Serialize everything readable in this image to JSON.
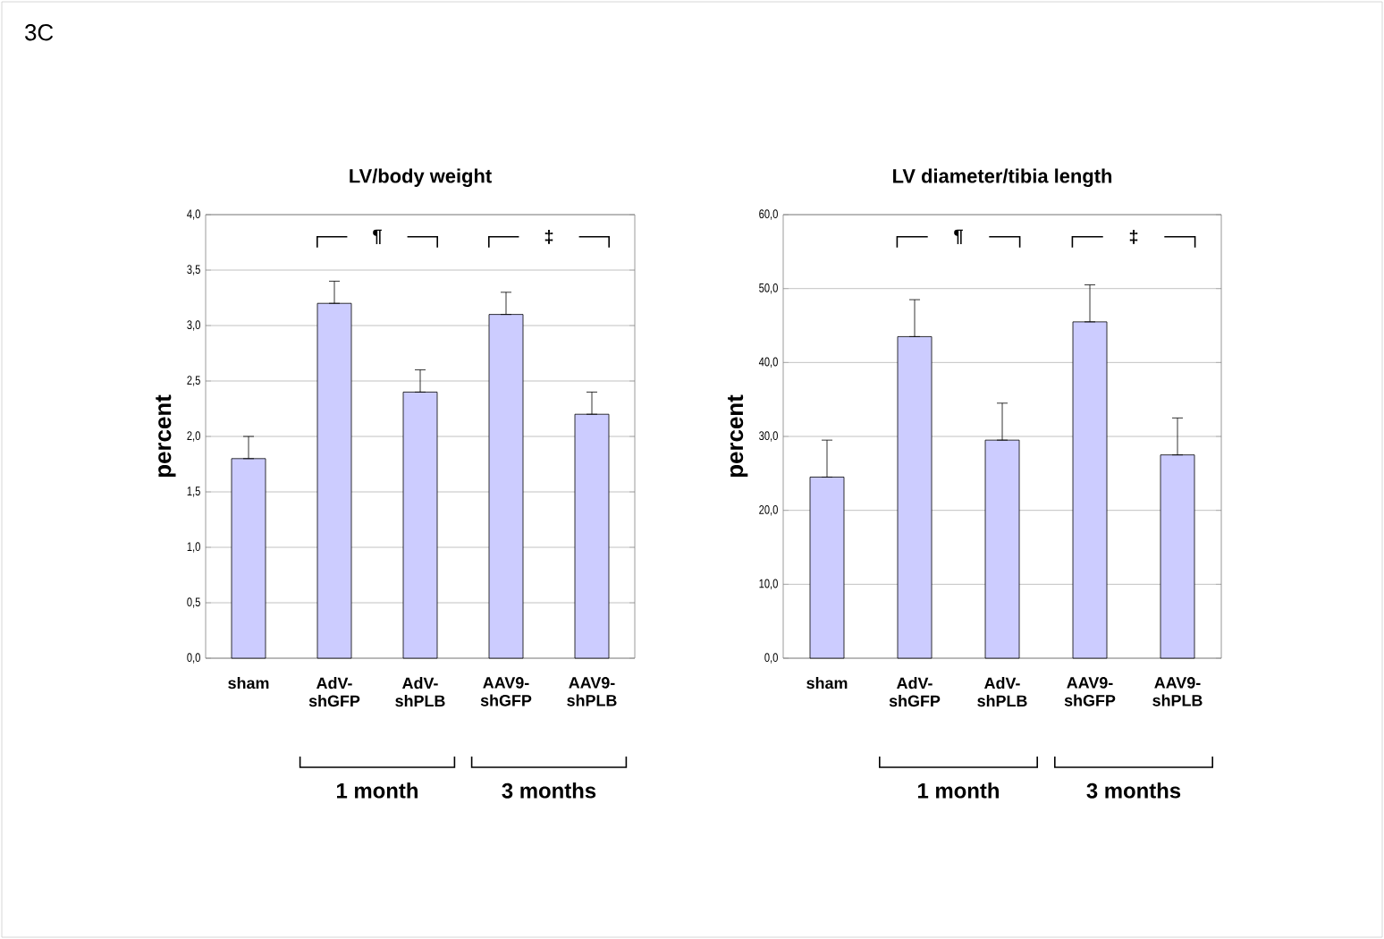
{
  "chart_data": [
    {
      "type": "bar",
      "title": "LV/body weight",
      "ylabel": "percent",
      "categories": [
        "sham",
        "AdV-shGFP",
        "AdV-shPLB",
        "AAV9-shGFP",
        "AAV9-shPLB"
      ],
      "values": [
        1.8,
        3.2,
        2.4,
        3.1,
        2.2
      ],
      "errors": [
        [
          1.8,
          2.0
        ],
        [
          3.2,
          3.4
        ],
        [
          2.4,
          2.6
        ],
        [
          3.1,
          3.3
        ],
        [
          2.2,
          2.4
        ]
      ],
      "color": "#ccccff",
      "ylim": [
        0,
        4
      ],
      "yticks": [
        {
          "value": 0,
          "label": "0,0"
        },
        {
          "value": 0.5,
          "label": "0,5"
        },
        {
          "value": 1,
          "label": "1,0"
        },
        {
          "value": 1.5,
          "label": "1,5"
        },
        {
          "value": 2,
          "label": "2,0"
        },
        {
          "value": 2.5,
          "label": "2,5"
        },
        {
          "value": 3,
          "label": "3,0"
        },
        {
          "value": 3.5,
          "label": "3,5"
        },
        {
          "value": 4,
          "label": "4,0"
        }
      ],
      "grid": "y",
      "annotations": [
        "3C",
        "¶",
        "‡",
        "1 month",
        "3 months"
      ]
    },
    {
      "type": "bar",
      "title": "LV diameter/tibia length",
      "ylabel": "percent",
      "categories": [
        "sham",
        "AdV-shGFP",
        "AdV-shPLB",
        "AAV9-shGFP",
        "AAV9-shPLB"
      ],
      "values": [
        24.5,
        43.5,
        29.5,
        45.5,
        27.5
      ],
      "errors": [
        [
          24.5,
          29.5
        ],
        [
          43.5,
          48.5
        ],
        [
          29.5,
          34.5
        ],
        [
          45.5,
          50.5
        ],
        [
          27.5,
          32.5
        ]
      ],
      "color": "#ccccff",
      "ylim": [
        0,
        60
      ],
      "yticks": [
        {
          "value": 0,
          "label": "0,0"
        },
        {
          "value": 10,
          "label": "10,0"
        },
        {
          "value": 20,
          "label": "20,0"
        },
        {
          "value": 30,
          "label": "30,0"
        },
        {
          "value": 40,
          "label": "40,0"
        },
        {
          "value": 50,
          "label": "50,0"
        },
        {
          "value": 60,
          "label": "60,0"
        }
      ],
      "grid": "y",
      "annotations": [
        "¶",
        "‡",
        "1 month",
        "3 months"
      ]
    }
  ]
}
